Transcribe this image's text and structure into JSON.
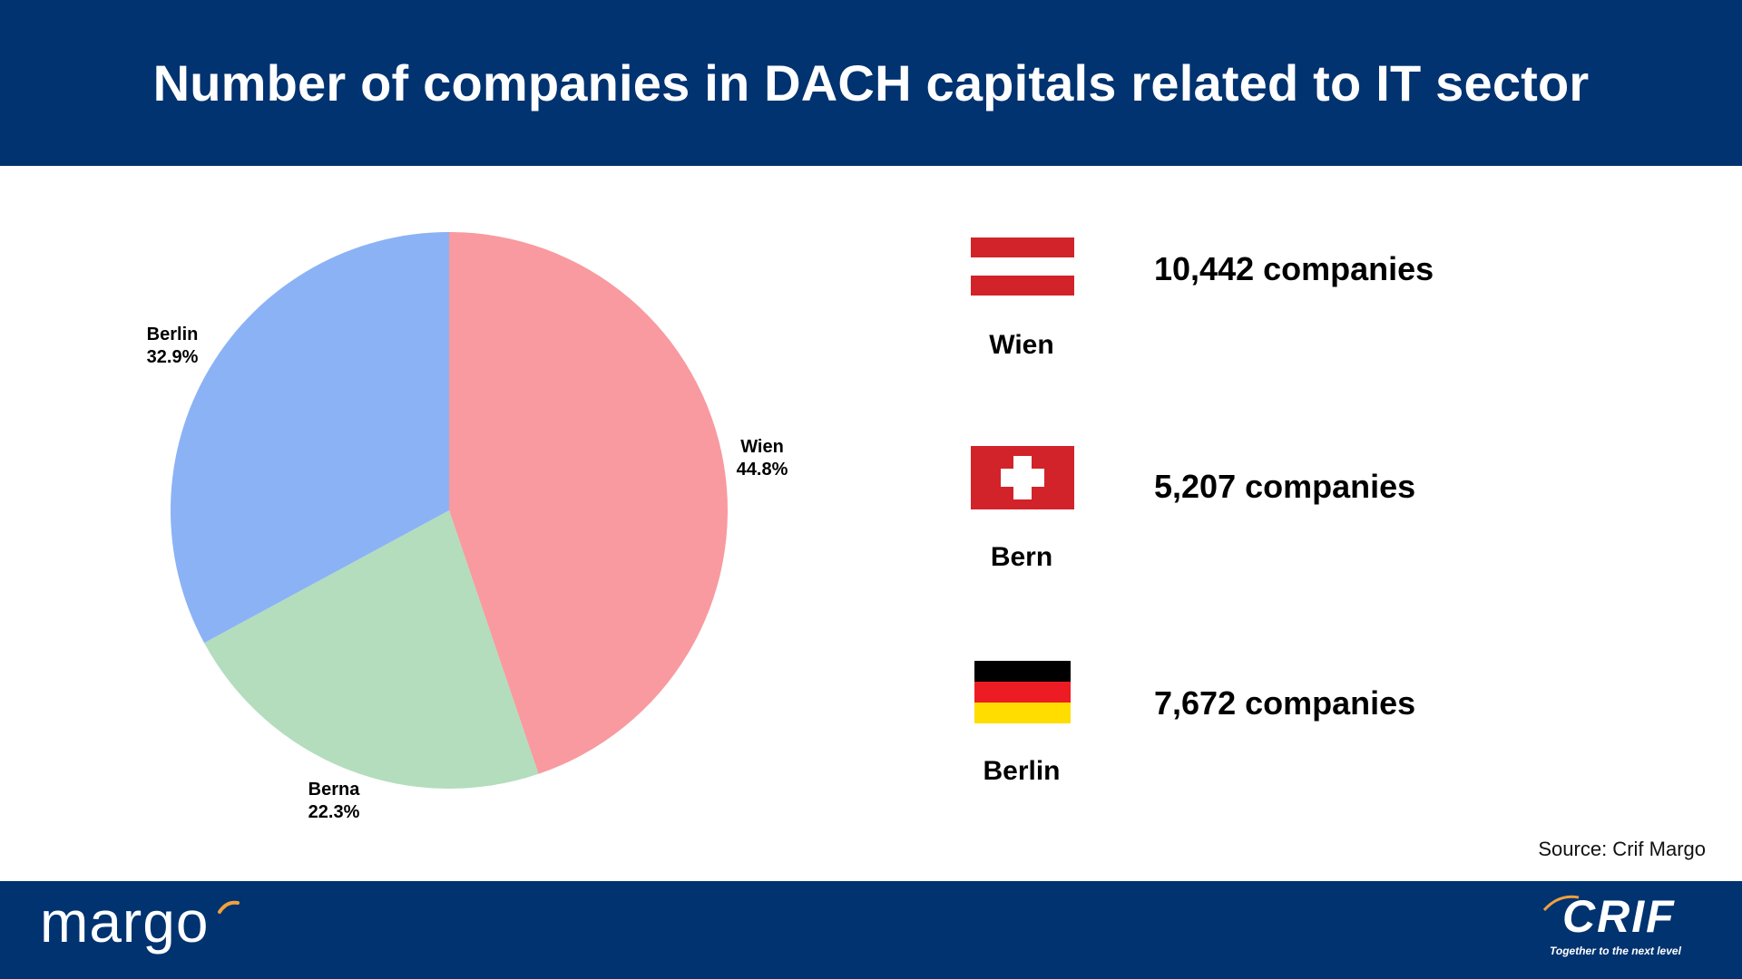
{
  "header": {
    "title": "Number of companies in DACH capitals related to IT sector"
  },
  "chart_data": {
    "type": "pie",
    "title": "Number of companies in DACH capitals related to IT sector",
    "slices": [
      {
        "label": "Wien",
        "value": 44.8,
        "percent_label": "44.8%",
        "color": "#f89a9f"
      },
      {
        "label": "Berna",
        "value": 22.3,
        "percent_label": "22.3%",
        "color": "#b3ddbd"
      },
      {
        "label": "Berlin",
        "value": 32.9,
        "percent_label": "32.9%",
        "color": "#8bb2f5"
      }
    ]
  },
  "stats": [
    {
      "city": "Wien",
      "count": "10,442 companies",
      "flag": "austria-flag"
    },
    {
      "city": "Bern",
      "count": "5,207 companies",
      "flag": "switzerland-flag"
    },
    {
      "city": "Berlin",
      "count": "7,672 companies",
      "flag": "germany-flag"
    }
  ],
  "source": "Source: Crif Margo",
  "footer": {
    "left_logo": "margo",
    "right_logo": "CRIF",
    "right_tagline": "Together to the next level"
  },
  "colors": {
    "brand_navy": "#003370",
    "flag_red": "#d2232a",
    "germany_black": "#000000",
    "germany_red": "#ed1c24",
    "germany_gold": "#ffdd00"
  }
}
